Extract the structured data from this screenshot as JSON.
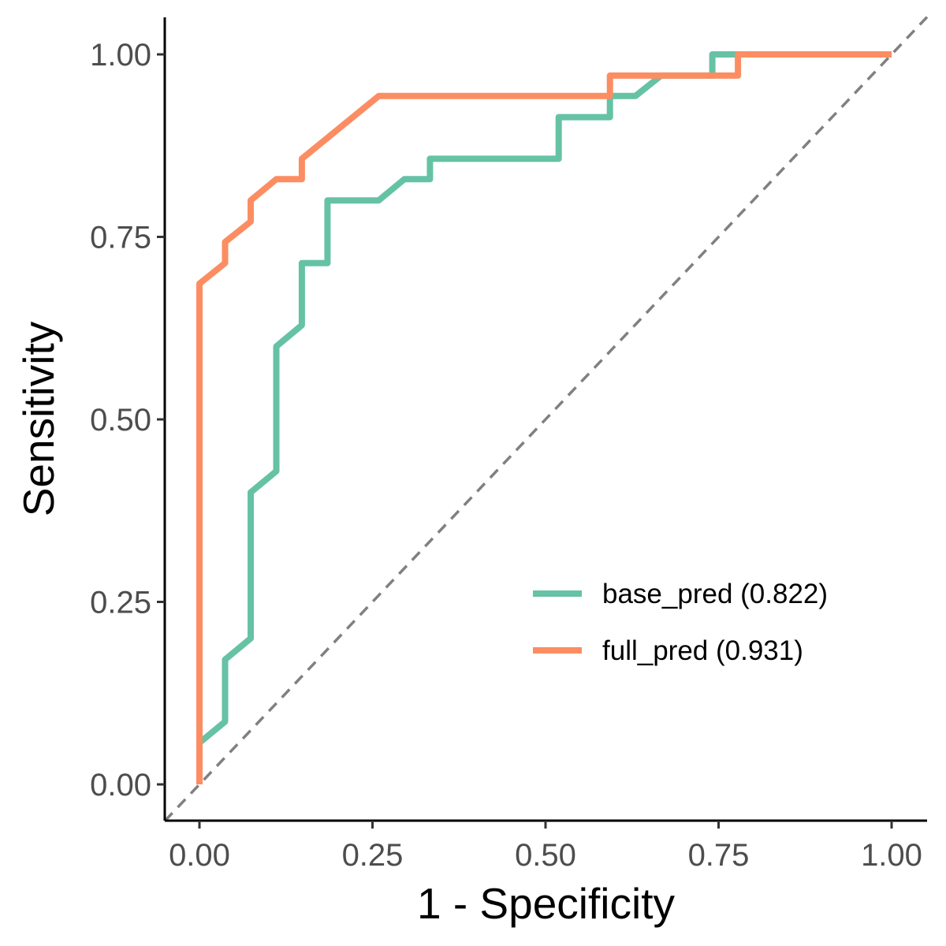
{
  "chart_data": {
    "type": "line",
    "subtype": "roc",
    "xlabel": "1 - Specificity",
    "ylabel": "Sensitivity",
    "xlim": [
      0,
      1
    ],
    "ylim": [
      0,
      1
    ],
    "x_ticks": [
      "0.00",
      "0.25",
      "0.50",
      "0.75",
      "1.00"
    ],
    "y_ticks": [
      "0.00",
      "0.25",
      "0.50",
      "0.75",
      "1.00"
    ],
    "grid": false,
    "legend_position": "bottom-right (inside plot)",
    "reference_line": {
      "type": "diagonal",
      "style": "dashed",
      "color": "#808080"
    },
    "series": [
      {
        "name": "base_pred (0.822)",
        "color": "#66C2A5",
        "points": [
          [
            0.0,
            0.0
          ],
          [
            0.0,
            0.057
          ],
          [
            0.037,
            0.086
          ],
          [
            0.037,
            0.171
          ],
          [
            0.074,
            0.2
          ],
          [
            0.074,
            0.4
          ],
          [
            0.111,
            0.429
          ],
          [
            0.111,
            0.6
          ],
          [
            0.148,
            0.629
          ],
          [
            0.148,
            0.714
          ],
          [
            0.185,
            0.714
          ],
          [
            0.185,
            0.8
          ],
          [
            0.259,
            0.8
          ],
          [
            0.296,
            0.829
          ],
          [
            0.333,
            0.829
          ],
          [
            0.333,
            0.857
          ],
          [
            0.519,
            0.857
          ],
          [
            0.519,
            0.914
          ],
          [
            0.593,
            0.914
          ],
          [
            0.593,
            0.943
          ],
          [
            0.63,
            0.943
          ],
          [
            0.667,
            0.971
          ],
          [
            0.741,
            0.971
          ],
          [
            0.741,
            1.0
          ],
          [
            1.0,
            1.0
          ]
        ]
      },
      {
        "name": "full_pred (0.931)",
        "color": "#FC8D62",
        "points": [
          [
            0.0,
            0.0
          ],
          [
            0.0,
            0.686
          ],
          [
            0.037,
            0.714
          ],
          [
            0.037,
            0.743
          ],
          [
            0.074,
            0.771
          ],
          [
            0.074,
            0.8
          ],
          [
            0.111,
            0.829
          ],
          [
            0.148,
            0.829
          ],
          [
            0.148,
            0.857
          ],
          [
            0.259,
            0.943
          ],
          [
            0.593,
            0.943
          ],
          [
            0.593,
            0.971
          ],
          [
            0.778,
            0.971
          ],
          [
            0.778,
            1.0
          ],
          [
            1.0,
            1.0
          ]
        ]
      }
    ]
  }
}
